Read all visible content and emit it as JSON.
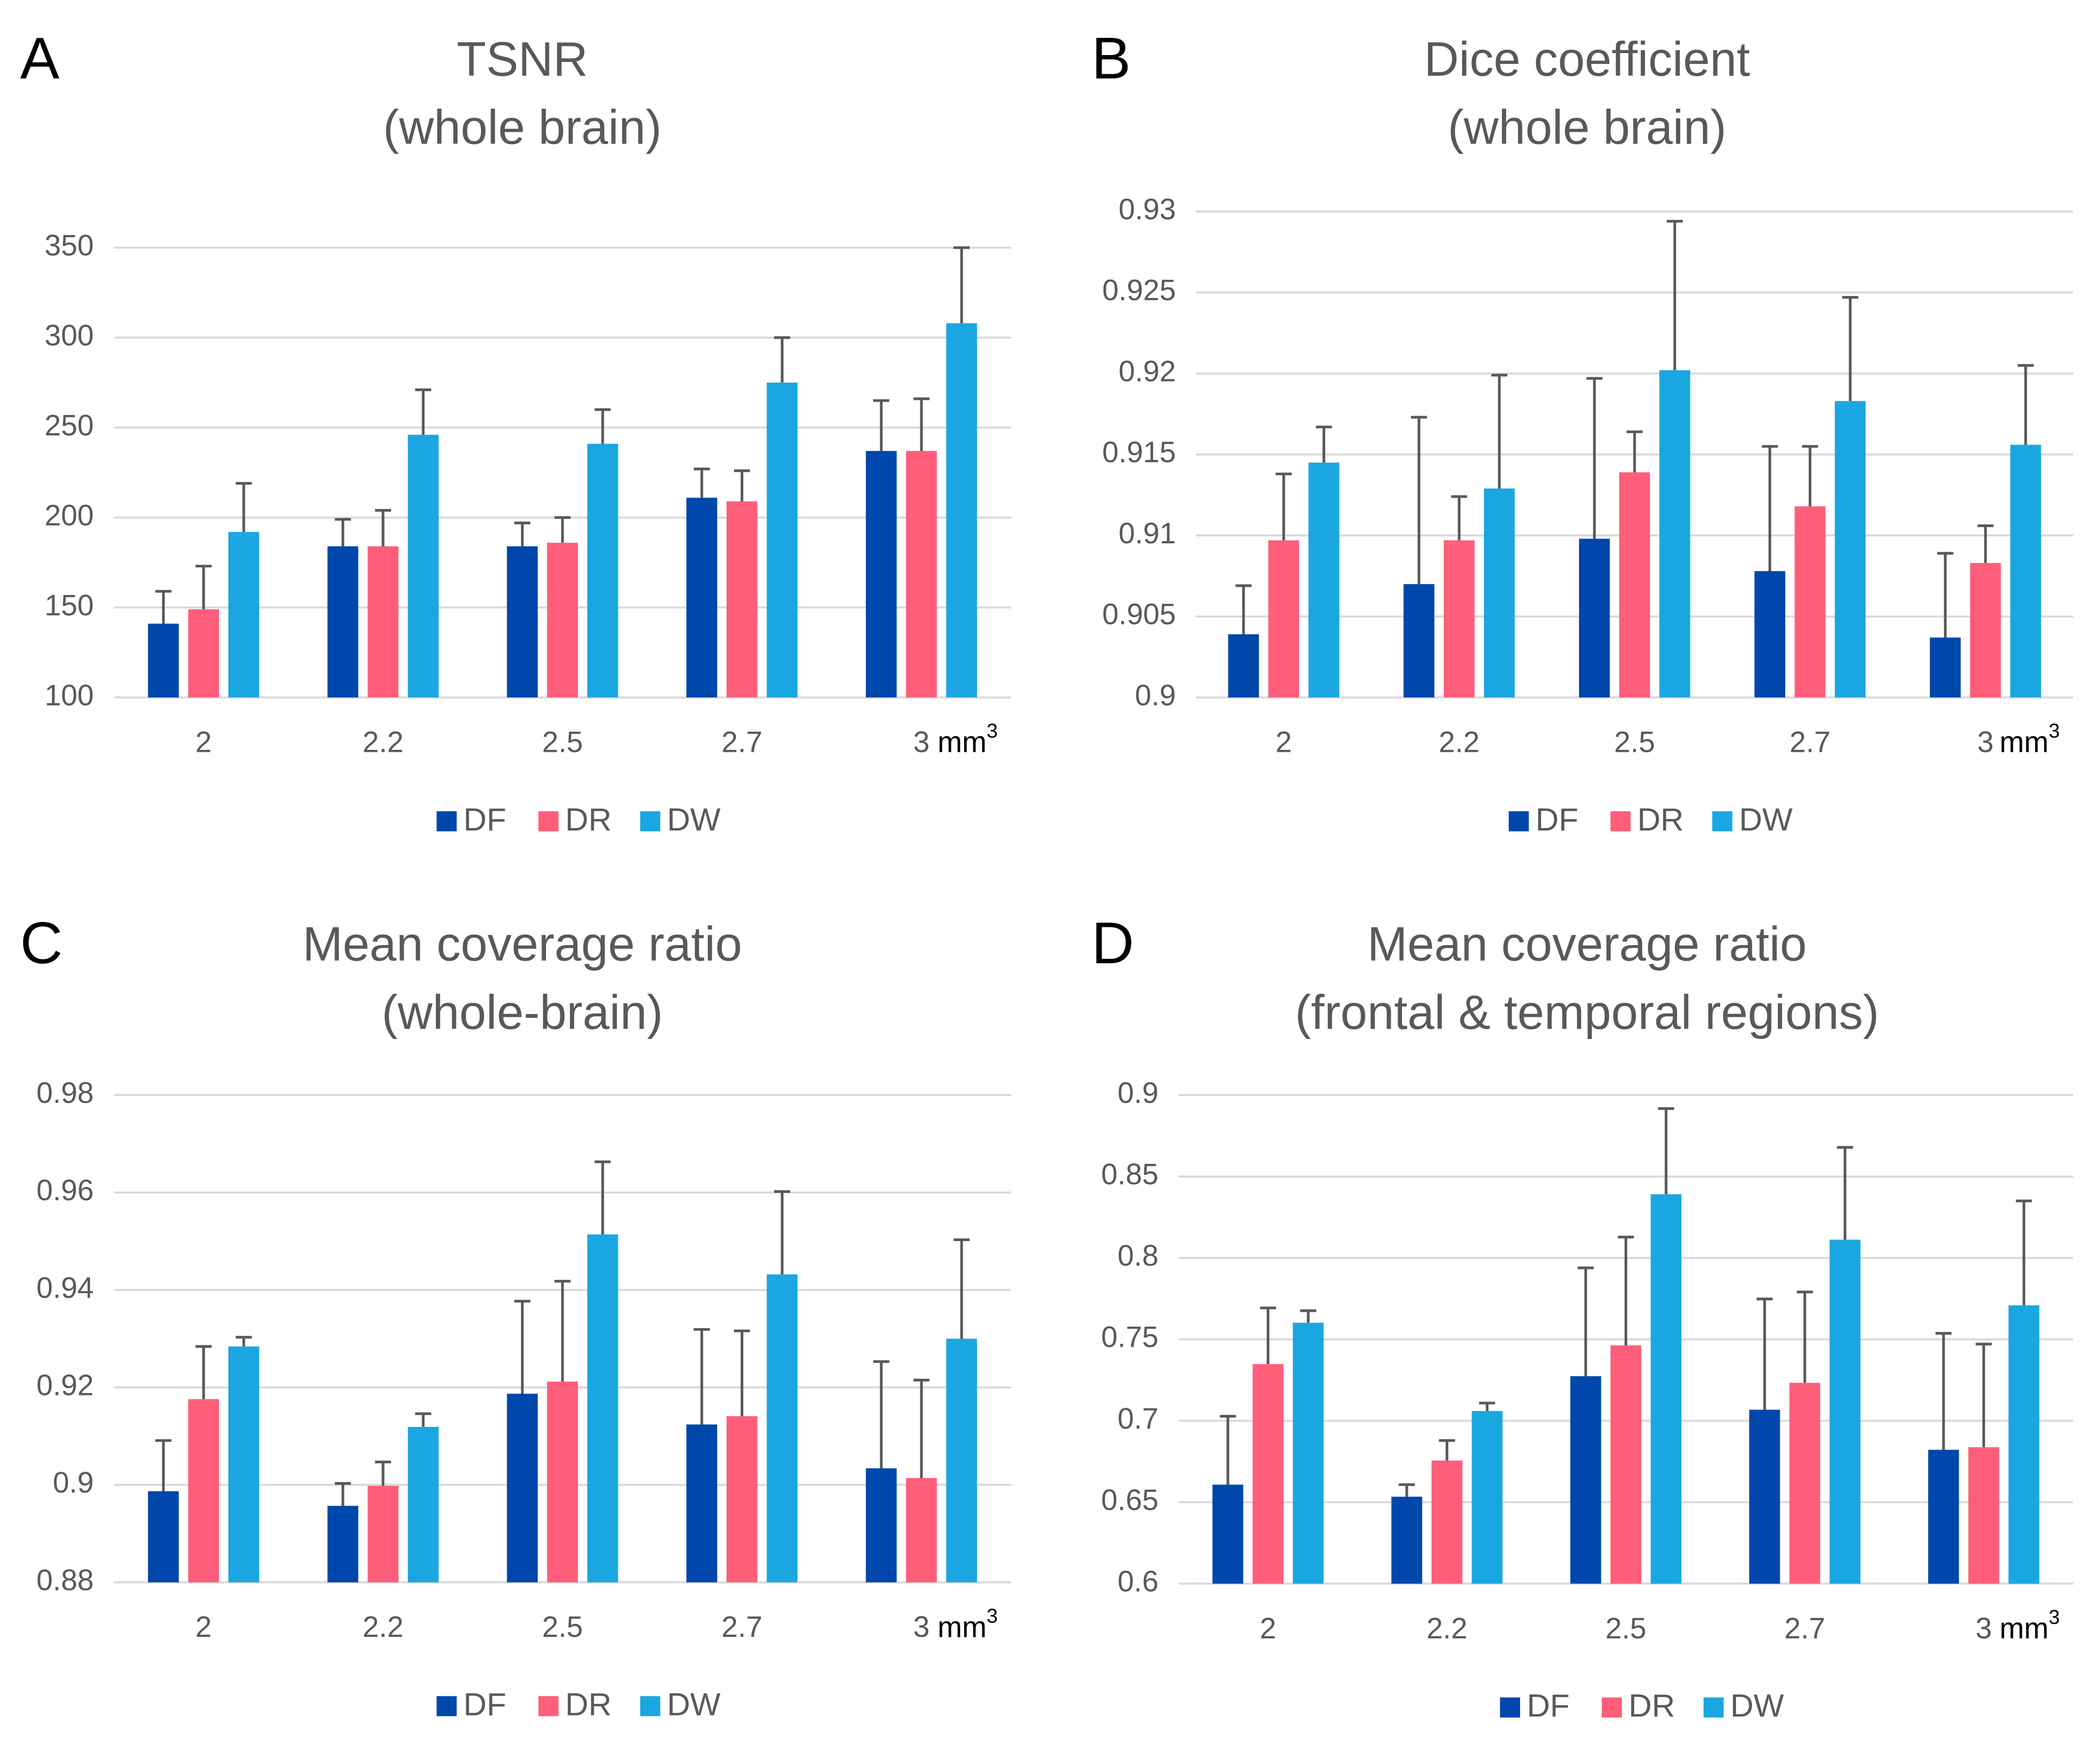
{
  "chart_data": [
    {
      "type": "bar",
      "panel": "A",
      "title": "TSNR",
      "subtitle": "(whole brain)",
      "categories": [
        "2",
        "2.2",
        "2.5",
        "2.7",
        "3"
      ],
      "x_unit": "mm",
      "x_unit_power": "3",
      "ylim": [
        100,
        350
      ],
      "yticks": [
        100,
        150,
        200,
        250,
        300,
        350
      ],
      "grid": true,
      "legend": "bottom",
      "series": [
        {
          "name": "DF",
          "color": "#0047ab",
          "values": [
            141,
            184,
            184,
            211,
            237
          ],
          "errors": [
            18,
            15,
            13,
            16,
            28
          ]
        },
        {
          "name": "DR",
          "color": "#ff5e7a",
          "values": [
            149,
            184,
            186,
            209,
            237
          ],
          "errors": [
            24,
            20,
            14,
            17,
            29
          ]
        },
        {
          "name": "DW",
          "color": "#1aa7e1",
          "values": [
            192,
            246,
            241,
            275,
            308
          ],
          "errors": [
            27,
            25,
            19,
            25,
            42
          ]
        }
      ]
    },
    {
      "type": "bar",
      "panel": "B",
      "title": "Dice coefficient",
      "subtitle": "(whole brain)",
      "categories": [
        "2",
        "2.2",
        "2.5",
        "2.7",
        "3"
      ],
      "x_unit": "mm",
      "x_unit_power": "3",
      "ylim": [
        0.9,
        0.93
      ],
      "yticks": [
        0.9,
        0.905,
        0.91,
        0.915,
        0.92,
        0.925,
        0.93
      ],
      "grid": true,
      "legend": "bottom",
      "series": [
        {
          "name": "DF",
          "color": "#0047ab",
          "values": [
            0.9039,
            0.907,
            0.9098,
            0.9078,
            0.9037
          ],
          "errors": [
            0.003,
            0.0103,
            0.0099,
            0.0077,
            0.0052
          ]
        },
        {
          "name": "DR",
          "color": "#ff5e7a",
          "values": [
            0.9097,
            0.9097,
            0.9139,
            0.9118,
            0.9083
          ],
          "errors": [
            0.0041,
            0.0027,
            0.0025,
            0.0037,
            0.0023
          ]
        },
        {
          "name": "DW",
          "color": "#1aa7e1",
          "values": [
            0.9145,
            0.9129,
            0.9202,
            0.9183,
            0.9156
          ],
          "errors": [
            0.0022,
            0.007,
            0.0092,
            0.0064,
            0.0049
          ]
        }
      ]
    },
    {
      "type": "bar",
      "panel": "C",
      "title": "Mean coverage ratio",
      "subtitle": "(whole-brain)",
      "categories": [
        "2",
        "2.2",
        "2.5",
        "2.7",
        "3"
      ],
      "x_unit": "mm",
      "x_unit_power": "3",
      "ylim": [
        0.88,
        0.98
      ],
      "yticks": [
        0.88,
        0.9,
        0.92,
        0.94,
        0.96,
        0.98
      ],
      "grid": true,
      "legend": "bottom",
      "series": [
        {
          "name": "DF",
          "color": "#0047ab",
          "values": [
            0.8987,
            0.8957,
            0.9187,
            0.9124,
            0.9034
          ],
          "errors": [
            0.0104,
            0.0046,
            0.019,
            0.0195,
            0.0219
          ]
        },
        {
          "name": "DR",
          "color": "#ff5e7a",
          "values": [
            0.9176,
            0.8998,
            0.9212,
            0.9141,
            0.9014
          ],
          "errors": [
            0.0108,
            0.0049,
            0.0206,
            0.0175,
            0.0201
          ]
        },
        {
          "name": "DW",
          "color": "#1aa7e1",
          "values": [
            0.9284,
            0.9119,
            0.9514,
            0.9432,
            0.93
          ],
          "errors": [
            0.0019,
            0.0027,
            0.0149,
            0.017,
            0.0203
          ]
        }
      ]
    },
    {
      "type": "bar",
      "panel": "D",
      "title": "Mean coverage ratio",
      "subtitle": "(frontal & temporal regions)",
      "categories": [
        "2",
        "2.2",
        "2.5",
        "2.7",
        "3"
      ],
      "x_unit": "mm",
      "x_unit_power": "3",
      "ylim": [
        0.6,
        0.9
      ],
      "yticks": [
        0.6,
        0.65,
        0.7,
        0.75,
        0.8,
        0.85,
        0.9
      ],
      "grid": true,
      "legend": "bottom",
      "series": [
        {
          "name": "DF",
          "color": "#0047ab",
          "values": [
            0.6608,
            0.6534,
            0.7274,
            0.7068,
            0.6822
          ],
          "errors": [
            0.042,
            0.0074,
            0.0665,
            0.068,
            0.0715
          ]
        },
        {
          "name": "DR",
          "color": "#ff5e7a",
          "values": [
            0.7348,
            0.6756,
            0.7463,
            0.7233,
            0.6838
          ],
          "errors": [
            0.0345,
            0.0123,
            0.0665,
            0.0558,
            0.0633
          ]
        },
        {
          "name": "DW",
          "color": "#1aa7e1",
          "values": [
            0.7602,
            0.706,
            0.8391,
            0.8112,
            0.7709
          ],
          "errors": [
            0.0074,
            0.0049,
            0.0526,
            0.0567,
            0.0641
          ]
        }
      ]
    }
  ]
}
